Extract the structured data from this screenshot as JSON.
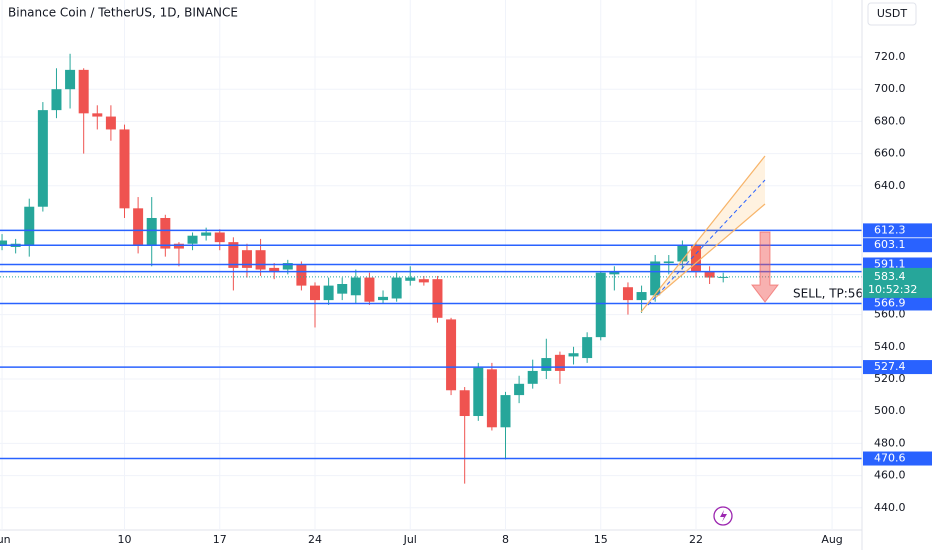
{
  "chart_data": {
    "type": "candlestick",
    "title": "Binance Coin / TetherUS, 1D, BINANCE",
    "currency": "USDT",
    "annotation": "SELL, TP:56",
    "open": [
      603,
      602,
      603,
      627,
      687,
      700,
      712,
      685,
      683,
      675,
      626,
      603,
      620,
      604,
      604,
      609,
      611,
      605,
      600,
      600,
      589,
      588,
      591,
      578,
      569,
      573,
      572,
      583,
      569,
      570,
      581,
      582,
      582,
      557,
      513,
      497,
      526,
      490,
      510,
      517,
      525,
      535,
      534,
      533,
      546,
      585,
      577,
      569,
      572,
      592,
      593,
      603,
      587,
      583
    ],
    "high": [
      610,
      607,
      632,
      692,
      713,
      722,
      713,
      690,
      690,
      678,
      633,
      633,
      622,
      605,
      611,
      614,
      613,
      608,
      604,
      607,
      592,
      594,
      593,
      580,
      583,
      583,
      588,
      586,
      575,
      586,
      590,
      584,
      584,
      558,
      515,
      530,
      530,
      512,
      522,
      532,
      545,
      537,
      540,
      549,
      587,
      590,
      580,
      578,
      597,
      597,
      606,
      605,
      590,
      586
    ],
    "low": [
      600,
      598,
      596,
      624,
      682,
      688,
      660,
      675,
      668,
      620,
      598,
      590,
      596,
      590,
      600,
      606,
      600,
      575,
      583,
      584,
      582,
      585,
      575,
      552,
      566,
      569,
      567,
      566,
      567,
      568,
      578,
      578,
      555,
      510,
      455,
      494,
      488,
      470,
      505,
      514,
      520,
      517,
      529,
      530,
      544,
      575,
      560,
      561,
      568,
      585,
      588,
      583,
      579,
      580
    ],
    "close": [
      606,
      604,
      627,
      687,
      700,
      712,
      685,
      683,
      675,
      626,
      603,
      620,
      601,
      601,
      609,
      611,
      605,
      589,
      589,
      588,
      587,
      592,
      578,
      569,
      578,
      579,
      583,
      568,
      571,
      583,
      583,
      580,
      558,
      513,
      497,
      527,
      490,
      510,
      517,
      525,
      533,
      525,
      536,
      546,
      586,
      587,
      569,
      574,
      593,
      593,
      603,
      587,
      583,
      583.4
    ],
    "up_color": "#26a69a",
    "down_color": "#ef5350",
    "levels": [
      612.3,
      603.1,
      591.1,
      586.7,
      566.9,
      527.4,
      470.6
    ],
    "level_color": "#2962ff",
    "last_price": 583.4,
    "countdown": "10:52:32",
    "xlim": [
      -0.15,
      63.2
    ],
    "xticks": [
      {
        "value": 0,
        "label": "Jun"
      },
      {
        "value": 9,
        "label": "10"
      },
      {
        "value": 16,
        "label": "17"
      },
      {
        "value": 23,
        "label": "24"
      },
      {
        "value": 30,
        "label": "Jul"
      },
      {
        "value": 37,
        "label": "8"
      },
      {
        "value": 44,
        "label": "15"
      },
      {
        "value": 51,
        "label": "22"
      },
      {
        "value": 61,
        "label": "Aug"
      }
    ],
    "ylim": [
      426.2,
      755.4
    ],
    "yticks": [
      {
        "value": 440,
        "label": "440.0"
      },
      {
        "value": 460,
        "label": "460.0"
      },
      {
        "value": 480,
        "label": "480.0"
      },
      {
        "value": 500,
        "label": "500.0"
      },
      {
        "value": 520,
        "label": "520.0"
      },
      {
        "value": 540,
        "label": "540.0"
      },
      {
        "value": 560,
        "label": "560.0"
      },
      {
        "value": 640,
        "label": "640.0"
      },
      {
        "value": 660,
        "label": "660.0"
      },
      {
        "value": 680,
        "label": "680.0"
      },
      {
        "value": 700,
        "label": "700.0"
      },
      {
        "value": 720,
        "label": "720.0"
      }
    ]
  }
}
